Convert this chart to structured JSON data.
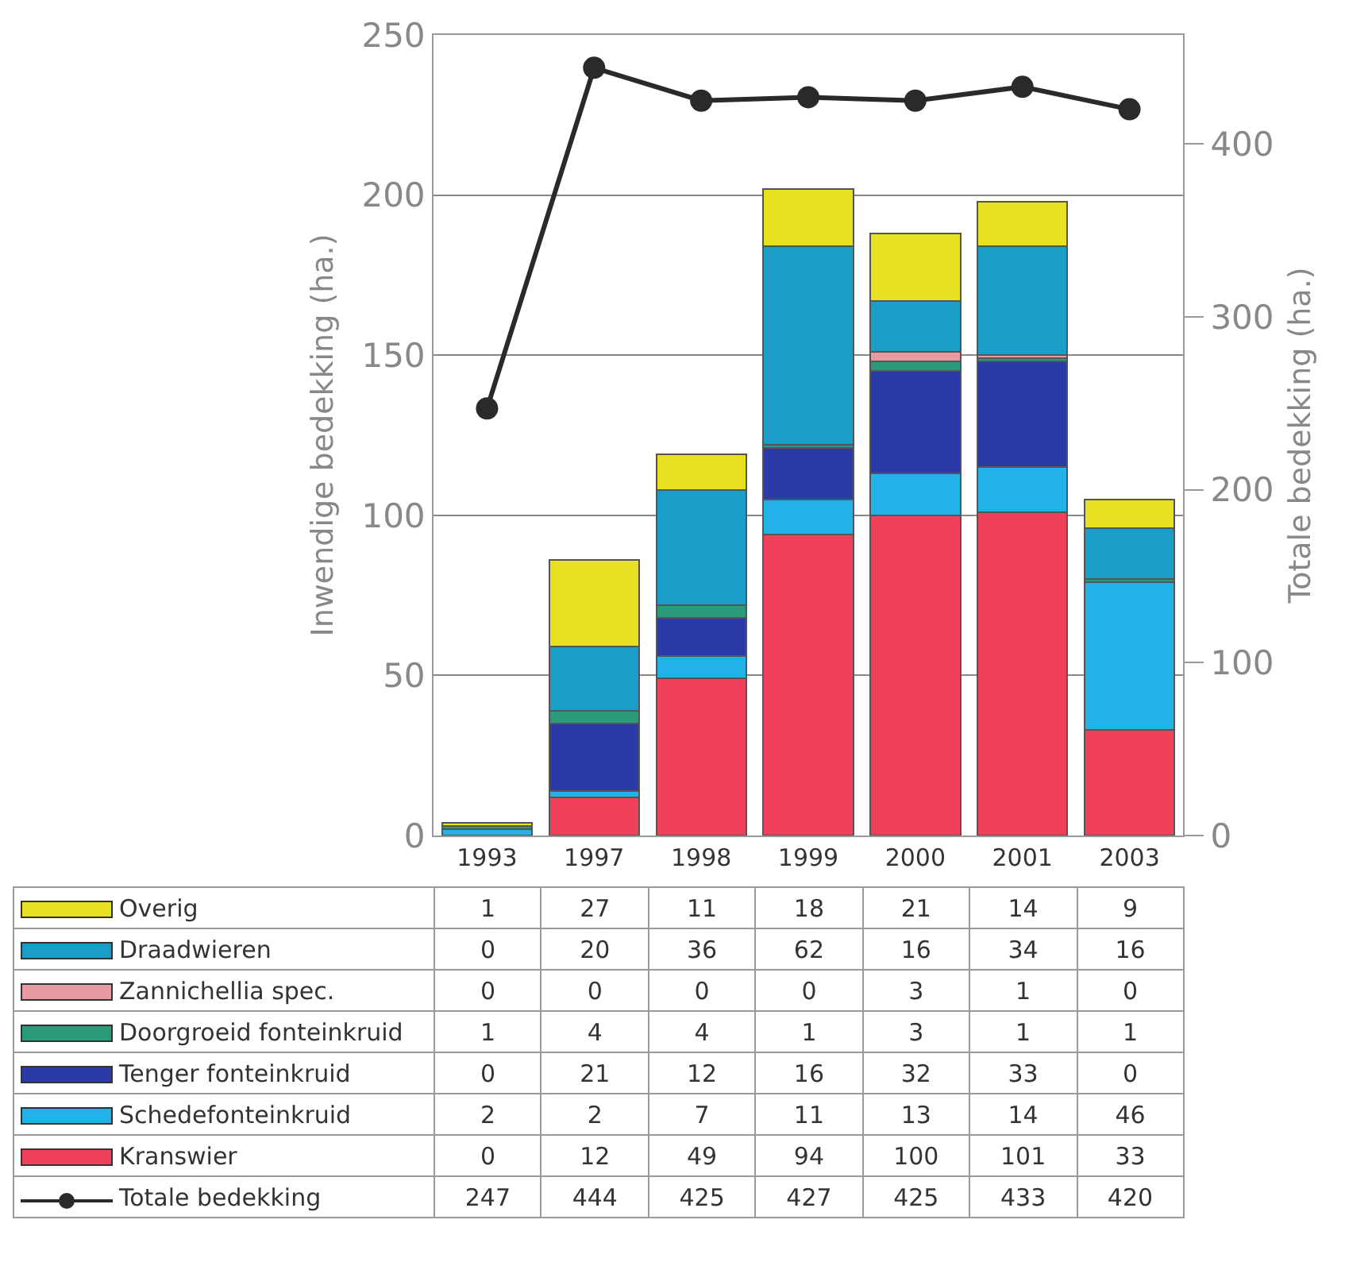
{
  "chart_data": {
    "type": "bar",
    "stacked": true,
    "ylabel": "Inwendige bedekking (ha.)",
    "y2label": "Totale bedekking (ha.)",
    "categories": [
      "1993",
      "1997",
      "1998",
      "1999",
      "2000",
      "2001",
      "2003"
    ],
    "ylim": [
      0,
      250
    ],
    "yticks": [
      0,
      50,
      100,
      150,
      200,
      250
    ],
    "y2lim": [
      0,
      463
    ],
    "y2ticks": [
      0,
      100,
      200,
      300,
      400
    ],
    "grid": "y",
    "data_labels": true,
    "legend": "bottom left",
    "series": [
      {
        "name": "Kranswier",
        "color": "#f0405a",
        "values": [
          0,
          12,
          49,
          94,
          100,
          101,
          33
        ]
      },
      {
        "name": "Schedefonteinkruid",
        "color": "#22b2e8",
        "values": [
          2,
          2,
          7,
          11,
          13,
          14,
          46
        ]
      },
      {
        "name": "Tenger fonteinkruid",
        "color": "#2a3aa8",
        "values": [
          0,
          21,
          12,
          16,
          32,
          33,
          0
        ]
      },
      {
        "name": "Doorgroeid fonteinkruid",
        "color": "#2a9a7a",
        "values": [
          1,
          4,
          4,
          1,
          3,
          1,
          1
        ]
      },
      {
        "name": "Zannichellia spec.",
        "color": "#e89aa0",
        "values": [
          0,
          0,
          0,
          0,
          3,
          1,
          0
        ]
      },
      {
        "name": "Draadwieren",
        "color": "#1a9ec8",
        "values": [
          0,
          20,
          36,
          62,
          16,
          34,
          16
        ]
      },
      {
        "name": "Overig",
        "color": "#e8e020",
        "values": [
          1,
          27,
          11,
          18,
          21,
          14,
          9
        ]
      },
      {
        "name": "Totale bedekking",
        "type": "line",
        "axis": "y2",
        "marker": "circle",
        "color": "#2a2a2a",
        "values": [
          247,
          444,
          425,
          427,
          425,
          433,
          420
        ]
      }
    ]
  }
}
